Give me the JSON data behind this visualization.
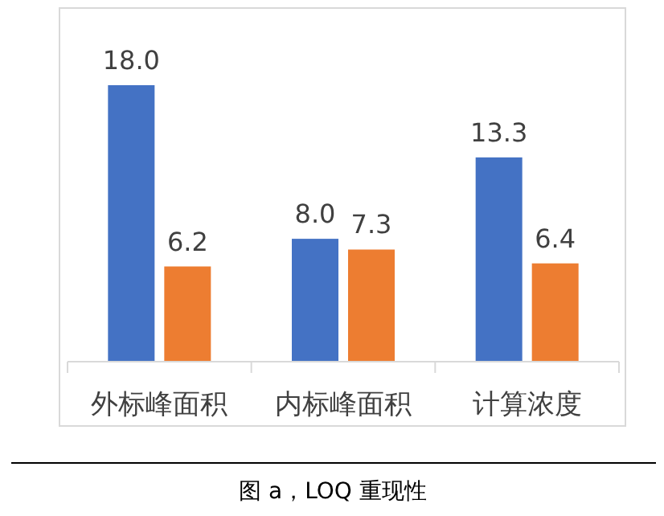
{
  "chart_data": {
    "type": "bar",
    "categories": [
      "外标峰面积",
      "内标峰面积",
      "计算浓度"
    ],
    "series": [
      {
        "color": "#4472c4",
        "values": [
          18,
          8,
          13.3
        ],
        "value_labels": [
          "18.0",
          "8.0",
          "13.3"
        ]
      },
      {
        "color": "#ed7d31",
        "values": [
          6.2,
          7.3,
          6.4
        ],
        "value_labels": [
          "6.2",
          "7.3",
          "6.4"
        ]
      }
    ],
    "annotations": [
      "图 a，LOQ 重现性"
    ]
  }
}
